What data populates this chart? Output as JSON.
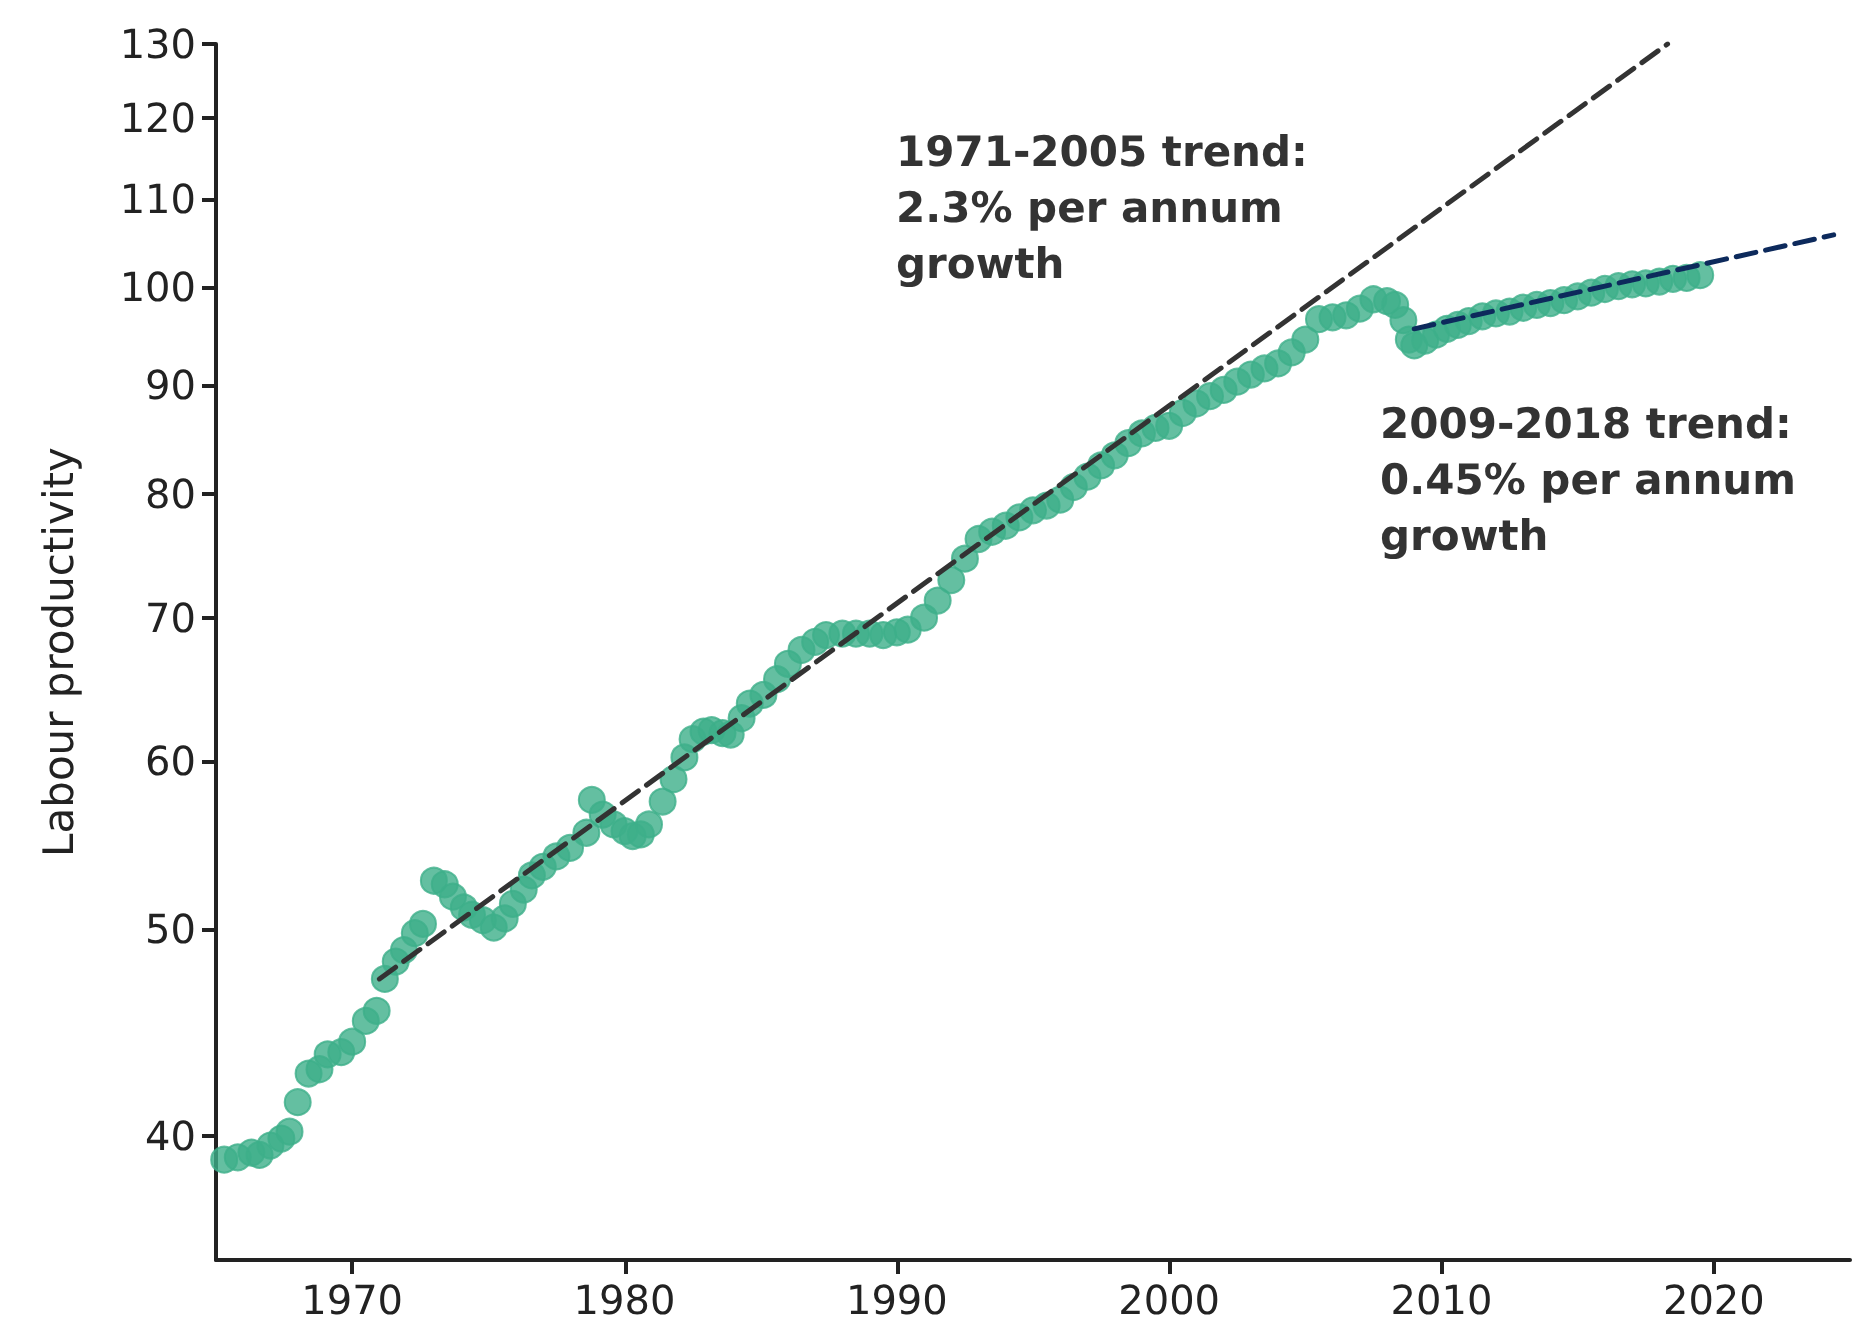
{
  "chart_data": {
    "type": "scatter",
    "ylabel": "Labour productivity",
    "log": "y",
    "grid": false,
    "xlim": [
      1965,
      2025
    ],
    "xticks": [
      1970,
      1980,
      1990,
      2000,
      2010,
      2020
    ],
    "ylim": [
      35,
      130
    ],
    "yticks": [
      40,
      50,
      60,
      70,
      80,
      90,
      100,
      110,
      120,
      130
    ],
    "annotations": [
      "1971-2005 trend:\n2.3% per annum\ngrowth",
      "2009-2018 trend:\n0.45% per annum\ngrowth"
    ],
    "series": [
      {
        "marker": "circle",
        "color": "#3daf8a",
        "x": [
          1965.3,
          1965.8,
          1966.3,
          1966.6,
          1967.0,
          1967.4,
          1967.7,
          1968.0,
          1968.4,
          1968.8,
          1969.1,
          1969.6,
          1970.0,
          1970.5,
          1970.9,
          1971.2,
          1971.6,
          1971.9,
          1972.3,
          1972.6,
          1973.0,
          1973.4,
          1973.7,
          1974.1,
          1974.4,
          1974.8,
          1975.2,
          1975.6,
          1975.9,
          1976.3,
          1976.6,
          1977.0,
          1977.5,
          1978.0,
          1978.6,
          1978.8,
          1979.2,
          1979.6,
          1980.0,
          1980.3,
          1980.6,
          1980.9,
          1981.4,
          1981.8,
          1982.2,
          1982.5,
          1982.9,
          1983.2,
          1983.6,
          1983.9,
          1984.3,
          1984.6,
          1985.1,
          1985.6,
          1986.0,
          1986.5,
          1987.0,
          1987.4,
          1988.0,
          1988.5,
          1989.0,
          1989.5,
          1990.0,
          1990.4,
          1991.0,
          1991.5,
          1992.0,
          1992.5,
          1993.0,
          1993.5,
          1994.0,
          1994.5,
          1995.0,
          1995.5,
          1996.0,
          1996.5,
          1997.0,
          1997.5,
          1998.0,
          1998.5,
          1999.0,
          1999.5,
          2000.0,
          2000.5,
          2001.0,
          2001.5,
          2002.0,
          2002.5,
          2003.0,
          2003.5,
          2004.0,
          2004.5,
          2005.0,
          2005.5,
          2006.0,
          2006.5,
          2007.0,
          2007.5,
          2008.0,
          2008.3,
          2008.6,
          2008.8,
          2009.0,
          2009.4,
          2009.8,
          2010.2,
          2010.6,
          2011.0,
          2011.5,
          2012.0,
          2012.5,
          2013.0,
          2013.5,
          2014.0,
          2014.5,
          2015.0,
          2015.5,
          2016.0,
          2016.5,
          2017.0,
          2017.5,
          2018.0,
          2018.5,
          2019.0,
          2019.5
        ],
        "values": [
          39.0,
          39.1,
          39.3,
          39.2,
          39.6,
          39.9,
          40.2,
          41.5,
          42.8,
          43.0,
          43.7,
          43.8,
          44.3,
          45.3,
          45.8,
          47.4,
          48.3,
          48.9,
          49.8,
          50.3,
          52.7,
          52.5,
          51.8,
          51.2,
          50.8,
          50.5,
          50.1,
          50.6,
          51.4,
          52.2,
          53.0,
          53.5,
          54.1,
          54.6,
          55.5,
          57.5,
          56.6,
          56.0,
          55.6,
          55.3,
          55.4,
          56.0,
          57.4,
          58.8,
          60.2,
          61.4,
          61.9,
          62.0,
          61.8,
          61.7,
          62.8,
          63.8,
          64.4,
          65.5,
          66.6,
          67.6,
          68.2,
          68.7,
          68.8,
          68.8,
          68.8,
          68.7,
          68.9,
          69.1,
          70.0,
          71.3,
          72.9,
          74.6,
          76.2,
          76.8,
          77.3,
          78.0,
          78.6,
          79.0,
          79.5,
          80.6,
          81.5,
          82.5,
          83.4,
          84.5,
          85.4,
          85.9,
          86.1,
          87.3,
          88.2,
          88.9,
          89.5,
          90.3,
          91.0,
          91.6,
          92.1,
          93.2,
          94.5,
          96.6,
          96.8,
          97.0,
          97.7,
          98.7,
          98.5,
          98.1,
          96.5,
          94.5,
          93.9,
          94.4,
          95.0,
          95.6,
          96.0,
          96.4,
          96.9,
          97.2,
          97.4,
          97.8,
          98.1,
          98.3,
          98.6,
          99.0,
          99.4,
          99.8,
          100.1,
          100.3,
          100.4,
          100.6,
          100.9,
          101.0,
          101.3
        ]
      },
      {
        "type": "line",
        "marker": "none",
        "line_style": "dashed",
        "color": "#333333",
        "x": [
          1971.0,
          2018.3
        ],
        "values": [
          47.4,
          130
        ]
      },
      {
        "type": "line",
        "marker": "none",
        "line_style": "dashed",
        "color": "#0d2a5c",
        "x": [
          2009.0,
          2024.4
        ],
        "values": [
          95.6,
          105.8
        ]
      }
    ]
  }
}
